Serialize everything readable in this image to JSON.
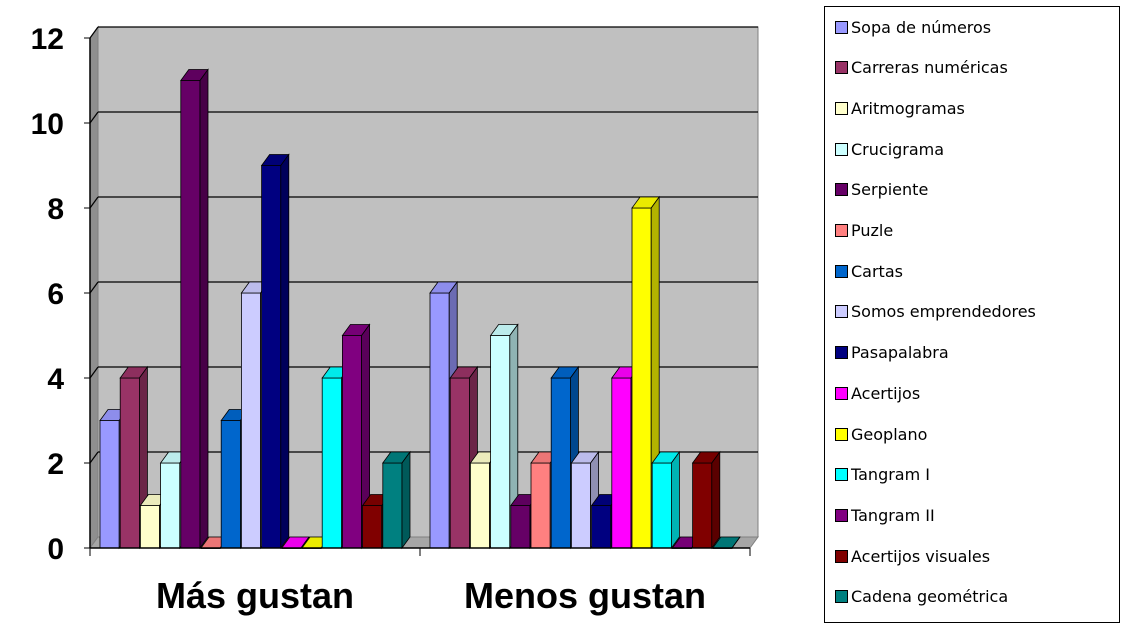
{
  "chart_data": {
    "type": "bar",
    "categories": [
      "Más gustan",
      "Menos gustan"
    ],
    "ylim": [
      0,
      12
    ],
    "yticks": [
      "0",
      "2",
      "4",
      "6",
      "8",
      "10",
      "12"
    ],
    "grid": true,
    "legend_position": "right",
    "plot_background": "#c0c0c0",
    "series": [
      {
        "name": "Sopa de números",
        "color": "#9999ff",
        "values": [
          3,
          6
        ]
      },
      {
        "name": "Carreras numéricas",
        "color": "#993366",
        "values": [
          4,
          4
        ]
      },
      {
        "name": "Aritmogramas",
        "color": "#ffffcc",
        "values": [
          1,
          2
        ]
      },
      {
        "name": "Crucigrama",
        "color": "#ccffff",
        "values": [
          2,
          5
        ]
      },
      {
        "name": "Serpiente",
        "color": "#660066",
        "values": [
          11,
          1
        ]
      },
      {
        "name": "Puzle",
        "color": "#ff8080",
        "values": [
          0,
          2
        ]
      },
      {
        "name": "Cartas",
        "color": "#0066cc",
        "values": [
          3,
          4
        ]
      },
      {
        "name": "Somos emprendedores",
        "color": "#ccccff",
        "values": [
          6,
          2
        ]
      },
      {
        "name": "Pasapalabra",
        "color": "#000080",
        "values": [
          9,
          1
        ]
      },
      {
        "name": "Acertijos",
        "color": "#ff00ff",
        "values": [
          0,
          4
        ]
      },
      {
        "name": "Geoplano",
        "color": "#ffff00",
        "values": [
          0,
          8
        ]
      },
      {
        "name": "Tangram I",
        "color": "#00ffff",
        "values": [
          4,
          2
        ]
      },
      {
        "name": "Tangram II",
        "color": "#800080",
        "values": [
          5,
          0
        ]
      },
      {
        "name": "Acertijos visuales",
        "color": "#800000",
        "values": [
          1,
          2
        ]
      },
      {
        "name": "Cadena geométrica",
        "color": "#008080",
        "values": [
          2,
          0
        ]
      }
    ]
  }
}
